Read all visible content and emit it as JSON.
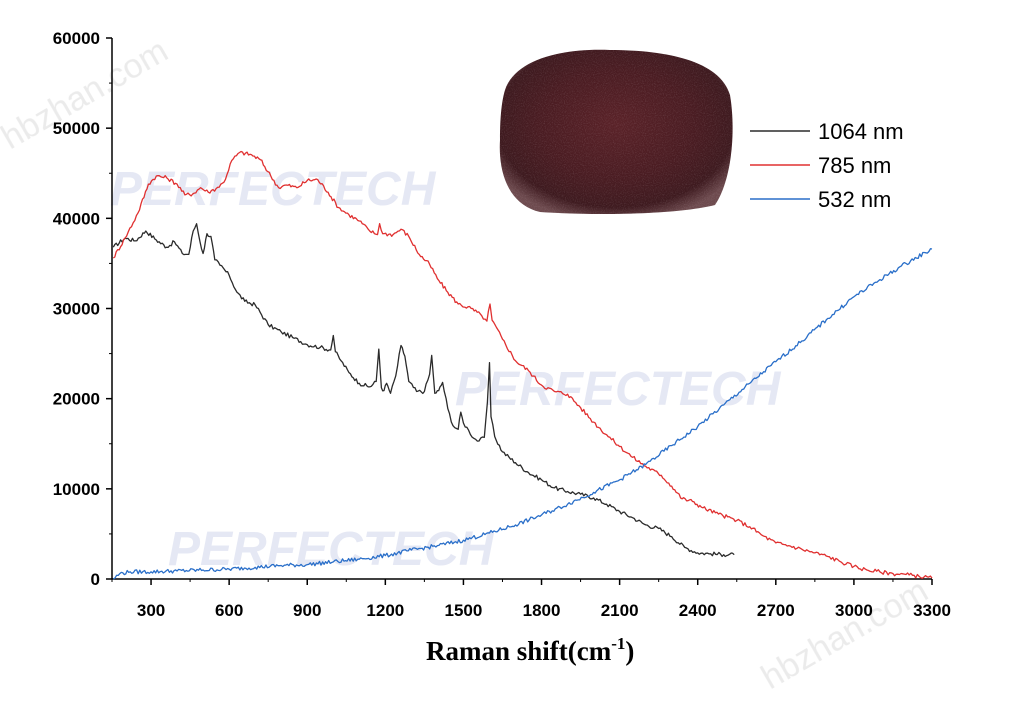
{
  "chart_data": {
    "type": "line",
    "title": "",
    "xlabel": "Raman shift(cm",
    "xlabel_sup": "-1",
    "xlabel_tail": ")",
    "ylabel": "",
    "xlim": [
      150,
      3300
    ],
    "ylim": [
      0,
      60000
    ],
    "x_ticks": [
      300,
      600,
      900,
      1200,
      1500,
      1800,
      2100,
      2400,
      2700,
      3000,
      3300
    ],
    "y_ticks": [
      0,
      10000,
      20000,
      30000,
      40000,
      50000,
      60000
    ],
    "grid": false,
    "legend_position": "top-right",
    "watermarks": [
      "PERFECTECH",
      "hbzhan.com"
    ],
    "series": [
      {
        "name": "1064 nm",
        "color": "#2b2b2b",
        "points": [
          [
            155,
            36800
          ],
          [
            200,
            37800
          ],
          [
            240,
            37500
          ],
          [
            280,
            38600
          ],
          [
            320,
            37600
          ],
          [
            360,
            36800
          ],
          [
            390,
            37400
          ],
          [
            420,
            36100
          ],
          [
            445,
            36000
          ],
          [
            462,
            38600
          ],
          [
            475,
            39400
          ],
          [
            488,
            37400
          ],
          [
            500,
            36100
          ],
          [
            515,
            38300
          ],
          [
            530,
            38000
          ],
          [
            545,
            35400
          ],
          [
            565,
            34800
          ],
          [
            600,
            33700
          ],
          [
            630,
            31800
          ],
          [
            660,
            30800
          ],
          [
            700,
            30400
          ],
          [
            750,
            28200
          ],
          [
            800,
            27400
          ],
          [
            850,
            26700
          ],
          [
            900,
            26000
          ],
          [
            950,
            25700
          ],
          [
            990,
            25400
          ],
          [
            1000,
            27000
          ],
          [
            1008,
            25200
          ],
          [
            1030,
            24200
          ],
          [
            1060,
            22900
          ],
          [
            1100,
            21700
          ],
          [
            1140,
            21300
          ],
          [
            1165,
            21900
          ],
          [
            1175,
            25500
          ],
          [
            1185,
            21200
          ],
          [
            1195,
            20900
          ],
          [
            1205,
            21700
          ],
          [
            1220,
            20600
          ],
          [
            1240,
            22500
          ],
          [
            1260,
            25900
          ],
          [
            1275,
            24700
          ],
          [
            1290,
            21900
          ],
          [
            1320,
            20800
          ],
          [
            1350,
            20800
          ],
          [
            1370,
            22700
          ],
          [
            1378,
            24800
          ],
          [
            1390,
            20600
          ],
          [
            1405,
            20900
          ],
          [
            1420,
            21800
          ],
          [
            1440,
            18900
          ],
          [
            1460,
            17000
          ],
          [
            1480,
            16600
          ],
          [
            1490,
            18500
          ],
          [
            1500,
            17300
          ],
          [
            1520,
            16500
          ],
          [
            1540,
            15600
          ],
          [
            1560,
            15300
          ],
          [
            1580,
            15700
          ],
          [
            1592,
            19600
          ],
          [
            1600,
            24000
          ],
          [
            1606,
            18000
          ],
          [
            1620,
            15800
          ],
          [
            1650,
            14100
          ],
          [
            1700,
            12900
          ],
          [
            1750,
            11800
          ],
          [
            1800,
            11000
          ],
          [
            1850,
            10100
          ],
          [
            1900,
            9700
          ],
          [
            1950,
            9400
          ],
          [
            2000,
            9000
          ],
          [
            2050,
            8300
          ],
          [
            2100,
            7500
          ],
          [
            2150,
            6800
          ],
          [
            2200,
            6000
          ],
          [
            2250,
            5600
          ],
          [
            2300,
            4700
          ],
          [
            2350,
            3500
          ],
          [
            2400,
            2900
          ],
          [
            2450,
            2800
          ],
          [
            2500,
            2700
          ],
          [
            2540,
            2700
          ]
        ]
      },
      {
        "name": "785 nm",
        "color": "#e03030",
        "points": [
          [
            155,
            35600
          ],
          [
            200,
            37800
          ],
          [
            250,
            40600
          ],
          [
            290,
            43800
          ],
          [
            320,
            44700
          ],
          [
            360,
            44500
          ],
          [
            400,
            43800
          ],
          [
            430,
            42600
          ],
          [
            460,
            42700
          ],
          [
            490,
            43400
          ],
          [
            520,
            42900
          ],
          [
            550,
            43300
          ],
          [
            580,
            44000
          ],
          [
            610,
            46400
          ],
          [
            640,
            47300
          ],
          [
            680,
            47100
          ],
          [
            720,
            46500
          ],
          [
            760,
            44700
          ],
          [
            790,
            43400
          ],
          [
            820,
            43700
          ],
          [
            860,
            43400
          ],
          [
            900,
            44200
          ],
          [
            940,
            44300
          ],
          [
            980,
            42900
          ],
          [
            1020,
            41200
          ],
          [
            1060,
            40400
          ],
          [
            1100,
            39700
          ],
          [
            1140,
            38600
          ],
          [
            1170,
            38200
          ],
          [
            1178,
            39400
          ],
          [
            1190,
            38300
          ],
          [
            1230,
            38200
          ],
          [
            1260,
            38800
          ],
          [
            1290,
            38000
          ],
          [
            1330,
            36000
          ],
          [
            1370,
            34900
          ],
          [
            1400,
            33300
          ],
          [
            1440,
            31800
          ],
          [
            1480,
            30500
          ],
          [
            1530,
            30000
          ],
          [
            1570,
            29200
          ],
          [
            1590,
            28600
          ],
          [
            1602,
            30500
          ],
          [
            1610,
            28700
          ],
          [
            1650,
            26600
          ],
          [
            1700,
            24200
          ],
          [
            1750,
            23100
          ],
          [
            1800,
            21500
          ],
          [
            1850,
            20800
          ],
          [
            1900,
            20500
          ],
          [
            1950,
            19000
          ],
          [
            2000,
            17400
          ],
          [
            2050,
            16000
          ],
          [
            2100,
            14700
          ],
          [
            2150,
            13500
          ],
          [
            2200,
            12500
          ],
          [
            2260,
            11500
          ],
          [
            2300,
            10300
          ],
          [
            2340,
            8900
          ],
          [
            2380,
            8600
          ],
          [
            2420,
            7900
          ],
          [
            2480,
            7200
          ],
          [
            2550,
            6500
          ],
          [
            2600,
            5800
          ],
          [
            2650,
            4800
          ],
          [
            2700,
            4000
          ],
          [
            2750,
            3700
          ],
          [
            2800,
            3300
          ],
          [
            2850,
            2900
          ],
          [
            2900,
            2500
          ],
          [
            2950,
            1900
          ],
          [
            3000,
            1400
          ],
          [
            3050,
            1000
          ],
          [
            3100,
            800
          ],
          [
            3150,
            600
          ],
          [
            3200,
            500
          ],
          [
            3250,
            300
          ],
          [
            3300,
            100
          ]
        ]
      },
      {
        "name": "532 nm",
        "color": "#2a6fc9",
        "points": [
          [
            155,
            0
          ],
          [
            180,
            600
          ],
          [
            220,
            800
          ],
          [
            300,
            800
          ],
          [
            400,
            900
          ],
          [
            500,
            1000
          ],
          [
            600,
            1100
          ],
          [
            700,
            1300
          ],
          [
            800,
            1500
          ],
          [
            900,
            1600
          ],
          [
            1000,
            1900
          ],
          [
            1100,
            2200
          ],
          [
            1200,
            2600
          ],
          [
            1300,
            3200
          ],
          [
            1400,
            3700
          ],
          [
            1500,
            4300
          ],
          [
            1600,
            5100
          ],
          [
            1700,
            6000
          ],
          [
            1800,
            7100
          ],
          [
            1900,
            8300
          ],
          [
            2000,
            9600
          ],
          [
            2100,
            11000
          ],
          [
            2200,
            12700
          ],
          [
            2300,
            14800
          ],
          [
            2400,
            16900
          ],
          [
            2500,
            19300
          ],
          [
            2600,
            21700
          ],
          [
            2700,
            24100
          ],
          [
            2800,
            26400
          ],
          [
            2900,
            28900
          ],
          [
            3000,
            31300
          ],
          [
            3100,
            33200
          ],
          [
            3200,
            35000
          ],
          [
            3300,
            36600
          ]
        ]
      }
    ]
  }
}
